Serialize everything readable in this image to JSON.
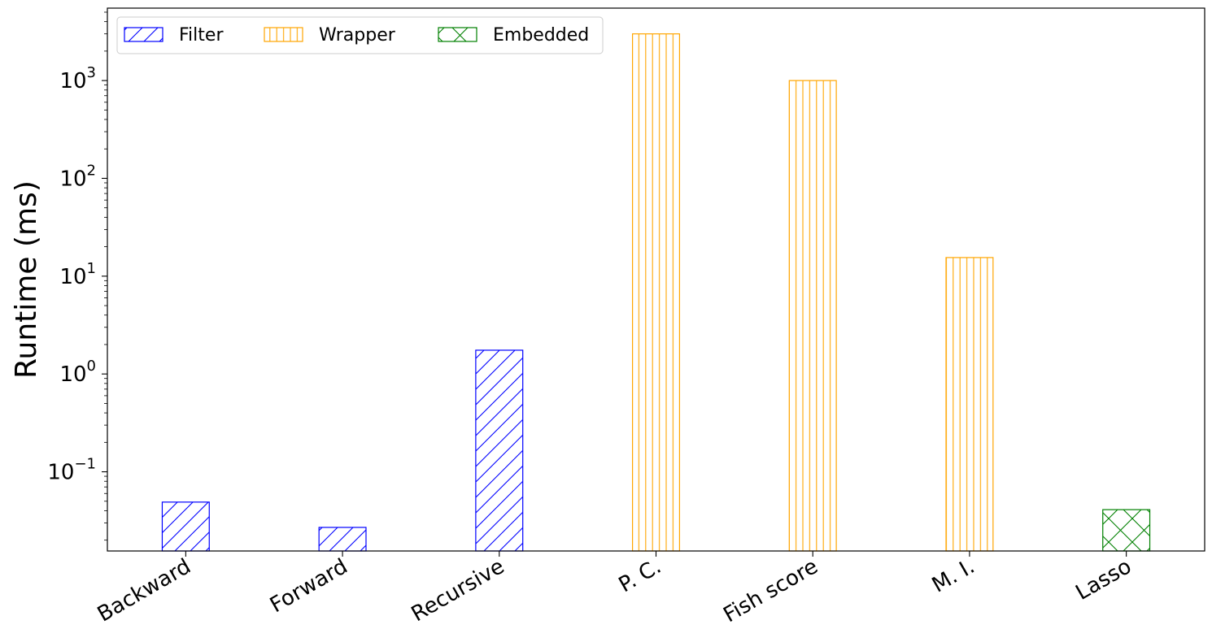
{
  "chart_data": {
    "type": "bar",
    "yscale": "log",
    "ylabel": "Runtime (ms)",
    "xlabel": "",
    "ylim": [
      0.0155,
      5500
    ],
    "categories": [
      "Backward",
      "Forward",
      "Recursive",
      "P. C.",
      "Fish score",
      "M. I.",
      "Lasso"
    ],
    "values": [
      0.049,
      0.027,
      1.75,
      3000,
      1000,
      15.5,
      0.041
    ],
    "groups": [
      "Filter",
      "Filter",
      "Filter",
      "Wrapper",
      "Wrapper",
      "Wrapper",
      "Embedded"
    ],
    "series": [
      {
        "name": "Filter",
        "color": "#0000ff",
        "hatch": "diagonal"
      },
      {
        "name": "Wrapper",
        "color": "#ffa500",
        "hatch": "vertical"
      },
      {
        "name": "Embedded",
        "color": "#008000",
        "hatch": "cross"
      }
    ],
    "yticks": [
      {
        "base": "10",
        "exp": "−1",
        "value": 0.1
      },
      {
        "base": "10",
        "exp": "0",
        "value": 1
      },
      {
        "base": "10",
        "exp": "1",
        "value": 10
      },
      {
        "base": "10",
        "exp": "2",
        "value": 100
      },
      {
        "base": "10",
        "exp": "3",
        "value": 1000
      }
    ],
    "legend": {
      "placement": "top-left",
      "columns": 3
    },
    "grid": false
  }
}
